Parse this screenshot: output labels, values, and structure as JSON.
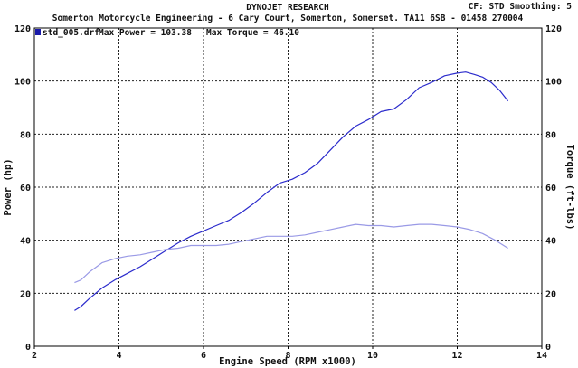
{
  "header": {
    "title": "DYNOJET RESEARCH",
    "subtitle": "Somerton Motorcycle Engineering - 6 Cary Court, Somerton, Somerset. TA11 6SB - 01458 270004",
    "settings": "CF: STD  Smoothing: 5"
  },
  "legend": {
    "run": "std_005.drf",
    "max_power": "Max Power = 103.38",
    "max_torque": "Max Torque = 46.10",
    "color": "#1a1aaa"
  },
  "chart_data": {
    "type": "line",
    "xlabel": "Engine Speed (RPM x1000)",
    "ylabel_left": "Power (hp)",
    "ylabel_right": "Torque (ft-lbs)",
    "xlim": [
      2,
      14
    ],
    "ylim": [
      0,
      120
    ],
    "xticks": [
      2,
      4,
      6,
      8,
      10,
      12,
      14
    ],
    "yticks": [
      0,
      20,
      40,
      60,
      80,
      100,
      120
    ],
    "grid": true,
    "legend_position": "top-left",
    "series": [
      {
        "color": "#2b2bcc",
        "x": [
          2.95,
          3.1,
          3.3,
          3.6,
          3.9,
          4.2,
          4.5,
          4.8,
          5.1,
          5.4,
          5.7,
          6.0,
          6.3,
          6.6,
          6.9,
          7.2,
          7.5,
          7.8,
          8.1,
          8.4,
          8.7,
          9.0,
          9.3,
          9.6,
          9.9,
          10.2,
          10.5,
          10.8,
          11.1,
          11.4,
          11.7,
          12.0,
          12.2,
          12.4,
          12.6,
          12.8,
          13.0,
          13.2
        ],
        "y": [
          13.5,
          15,
          18,
          22,
          25,
          27.5,
          30,
          33,
          36,
          39,
          41.5,
          43.5,
          45.5,
          47.5,
          50.5,
          54,
          58,
          61.5,
          63,
          65.5,
          69,
          74,
          79,
          83,
          85.5,
          88.5,
          89.5,
          93,
          97.5,
          99.5,
          102,
          103,
          103.4,
          102.5,
          101.5,
          99.5,
          96.5,
          92.5
        ]
      },
      {
        "color": "#9a9ae6",
        "x": [
          2.95,
          3.1,
          3.3,
          3.6,
          3.9,
          4.2,
          4.5,
          4.8,
          5.1,
          5.4,
          5.7,
          6.0,
          6.3,
          6.6,
          6.9,
          7.2,
          7.5,
          7.8,
          8.1,
          8.4,
          8.7,
          9.0,
          9.3,
          9.6,
          9.9,
          10.2,
          10.5,
          10.8,
          11.1,
          11.4,
          11.7,
          12.0,
          12.3,
          12.6,
          12.9,
          13.2
        ],
        "y": [
          24,
          25,
          28,
          31.5,
          33,
          34,
          34.5,
          35.5,
          36.5,
          37,
          38,
          38,
          38,
          38.5,
          39.5,
          40.5,
          41.5,
          41.5,
          41.5,
          42,
          43,
          44,
          45,
          46,
          45.5,
          45.5,
          45,
          45.5,
          46,
          46,
          45.5,
          45,
          44,
          42.5,
          40,
          37
        ]
      }
    ]
  }
}
